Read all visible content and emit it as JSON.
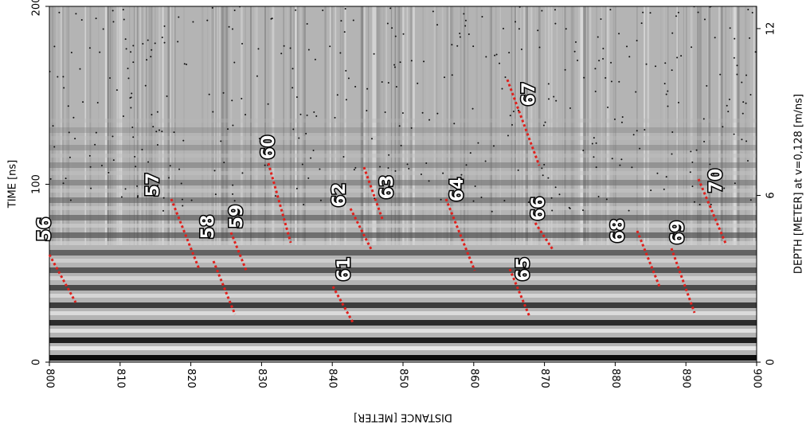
{
  "chart_data": {
    "type": "radargram",
    "xlabel": "DISTANCE [METER]",
    "ylabel": "TIME [ns]",
    "y2label": "DEPTH [METER] at v=0,128 [m/ns]",
    "xlim": [
      800,
      900
    ],
    "xticks": [
      800,
      810,
      820,
      830,
      840,
      850,
      860,
      870,
      880,
      890,
      900
    ],
    "ylim": [
      0,
      200
    ],
    "yticks": [
      0,
      100,
      200
    ],
    "y2lim": [
      0,
      12.8
    ],
    "y2ticks": [
      0,
      6,
      12
    ],
    "annotations": [
      "56",
      "57",
      "58",
      "59",
      "60",
      "61",
      "62",
      "63",
      "64",
      "65",
      "66",
      "67",
      "68",
      "69",
      "70"
    ],
    "annotation_color": "#e0201c"
  }
}
